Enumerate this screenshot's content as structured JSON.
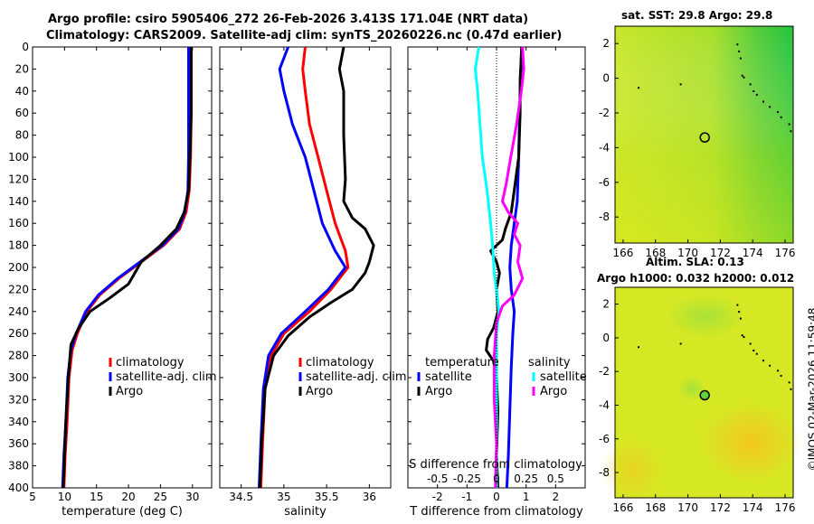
{
  "title": {
    "line1": "Argo profile: csiro 5905406_272 26-Feb-2026 3.413S 171.04E (NRT data)",
    "line2": "Climatology: CARS2009. Satellite-adj clim: synTS_20260226.nc (0.47d earlier)"
  },
  "credit": "©IMOS 02-Mar-2026 11:59:48",
  "colors": {
    "climatology": "#ff0000",
    "satellite": "#0000ff",
    "argo": "#000000",
    "t_satellite": "#00ffff",
    "s_satellite": "#ff00ff"
  },
  "chart_data": [
    {
      "id": "temperature",
      "type": "line",
      "xlabel": "temperature (deg C)",
      "ylabel": "",
      "xlim": [
        5,
        33
      ],
      "ylim": [
        400,
        0
      ],
      "xticks": [
        5,
        10,
        15,
        20,
        25,
        30
      ],
      "yticks": [
        0,
        20,
        40,
        60,
        80,
        100,
        120,
        140,
        160,
        180,
        200,
        220,
        240,
        260,
        280,
        300,
        320,
        340,
        360,
        380,
        400
      ],
      "legend": [
        "climatology",
        "satellite-adj. clim",
        "Argo"
      ],
      "series": [
        {
          "name": "climatology",
          "color": "#ff0000",
          "points": [
            [
              29.8,
              0
            ],
            [
              29.8,
              20
            ],
            [
              29.8,
              60
            ],
            [
              29.7,
              100
            ],
            [
              29.5,
              130
            ],
            [
              29.0,
              150
            ],
            [
              28.0,
              165
            ],
            [
              25.5,
              180
            ],
            [
              22,
              195
            ],
            [
              18.5,
              210
            ],
            [
              15.5,
              225
            ],
            [
              13.5,
              240
            ],
            [
              12.0,
              260
            ],
            [
              11.2,
              275
            ],
            [
              10.7,
              300
            ],
            [
              10.4,
              340
            ],
            [
              10.1,
              370
            ],
            [
              9.9,
              400
            ]
          ]
        },
        {
          "name": "satellite-adj. clim",
          "color": "#0000ff",
          "points": [
            [
              29.4,
              0
            ],
            [
              29.4,
              20
            ],
            [
              29.4,
              60
            ],
            [
              29.4,
              100
            ],
            [
              29.3,
              130
            ],
            [
              28.8,
              150
            ],
            [
              27.8,
              165
            ],
            [
              25.3,
              180
            ],
            [
              21.8,
              195
            ],
            [
              18.3,
              210
            ],
            [
              15.3,
              225
            ],
            [
              13.3,
              240
            ],
            [
              11.8,
              260
            ],
            [
              11.0,
              275
            ],
            [
              10.5,
              300
            ],
            [
              10.2,
              340
            ],
            [
              9.9,
              370
            ],
            [
              9.7,
              400
            ]
          ]
        },
        {
          "name": "Argo",
          "color": "#000000",
          "points": [
            [
              29.8,
              0
            ],
            [
              29.8,
              20
            ],
            [
              29.8,
              60
            ],
            [
              29.6,
              100
            ],
            [
              29.4,
              130
            ],
            [
              28.7,
              150
            ],
            [
              27.5,
              165
            ],
            [
              25.0,
              180
            ],
            [
              22.0,
              195
            ],
            [
              21.0,
              205
            ],
            [
              20.0,
              215
            ],
            [
              17.0,
              228
            ],
            [
              14.0,
              240
            ],
            [
              12.2,
              255
            ],
            [
              11.0,
              270
            ],
            [
              10.6,
              300
            ],
            [
              10.2,
              340
            ],
            [
              10.0,
              370
            ],
            [
              9.8,
              400
            ]
          ]
        }
      ]
    },
    {
      "id": "salinity",
      "type": "line",
      "xlabel": "salinity",
      "ylabel": "",
      "xlim": [
        34.25,
        36.25
      ],
      "ylim": [
        400,
        0
      ],
      "xticks": [
        34.5,
        35,
        35.5,
        36
      ],
      "legend": [
        "climatology",
        "satellite-adj. clim",
        "Argo"
      ],
      "series": [
        {
          "name": "climatology",
          "color": "#ff0000",
          "points": [
            [
              35.25,
              0
            ],
            [
              35.22,
              20
            ],
            [
              35.25,
              40
            ],
            [
              35.3,
              70
            ],
            [
              35.4,
              100
            ],
            [
              35.5,
              130
            ],
            [
              35.6,
              160
            ],
            [
              35.72,
              185
            ],
            [
              35.75,
              200
            ],
            [
              35.55,
              220
            ],
            [
              35.3,
              240
            ],
            [
              35.0,
              260
            ],
            [
              34.85,
              280
            ],
            [
              34.78,
              310
            ],
            [
              34.75,
              360
            ],
            [
              34.73,
              400
            ]
          ]
        },
        {
          "name": "satellite-adj. clim",
          "color": "#0000ff",
          "points": [
            [
              35.05,
              0
            ],
            [
              34.95,
              20
            ],
            [
              35.0,
              40
            ],
            [
              35.1,
              70
            ],
            [
              35.25,
              100
            ],
            [
              35.35,
              130
            ],
            [
              35.45,
              160
            ],
            [
              35.6,
              185
            ],
            [
              35.72,
              200
            ],
            [
              35.52,
              220
            ],
            [
              35.25,
              240
            ],
            [
              34.97,
              260
            ],
            [
              34.82,
              280
            ],
            [
              34.76,
              310
            ],
            [
              34.73,
              360
            ],
            [
              34.71,
              400
            ]
          ]
        },
        {
          "name": "Argo",
          "color": "#000000",
          "points": [
            [
              35.7,
              0
            ],
            [
              35.65,
              20
            ],
            [
              35.7,
              40
            ],
            [
              35.7,
              80
            ],
            [
              35.72,
              120
            ],
            [
              35.7,
              140
            ],
            [
              35.8,
              155
            ],
            [
              35.95,
              165
            ],
            [
              36.05,
              180
            ],
            [
              36.0,
              195
            ],
            [
              35.95,
              205
            ],
            [
              35.8,
              220
            ],
            [
              35.55,
              232
            ],
            [
              35.3,
              245
            ],
            [
              35.05,
              262
            ],
            [
              34.88,
              280
            ],
            [
              34.78,
              310
            ],
            [
              34.74,
              360
            ],
            [
              34.72,
              400
            ]
          ]
        }
      ]
    },
    {
      "id": "difference",
      "type": "line",
      "xlabel": "T difference from climatology",
      "xlabel2": "S difference from climatology",
      "xlim": [
        -3,
        3
      ],
      "xlim2": [
        -0.75,
        0.75
      ],
      "ylim": [
        400,
        0
      ],
      "xticks": [
        -2,
        -1,
        0,
        1,
        2
      ],
      "xticks2": [
        -0.5,
        -0.25,
        0,
        0.25,
        0.5
      ],
      "xticklabels2": [
        "-0.5",
        "-0.25",
        "0",
        "0.25",
        "0.5"
      ],
      "legend_temperature_title": "temperature",
      "legend_salinity_title": "salinity",
      "legend": [
        "satellite",
        "Argo",
        "satellite",
        "Argo"
      ],
      "series": [
        {
          "name": "T satellite",
          "color": "#0000ff",
          "axis": "T",
          "points": [
            [
              0.85,
              0
            ],
            [
              0.8,
              40
            ],
            [
              0.75,
              100
            ],
            [
              0.7,
              140
            ],
            [
              0.6,
              160
            ],
            [
              0.5,
              180
            ],
            [
              0.45,
              200
            ],
            [
              0.5,
              220
            ],
            [
              0.6,
              240
            ],
            [
              0.55,
              260
            ],
            [
              0.5,
              290
            ],
            [
              0.45,
              330
            ],
            [
              0.4,
              370
            ],
            [
              0.35,
              400
            ]
          ]
        },
        {
          "name": "T Argo",
          "color": "#000000",
          "axis": "T",
          "points": [
            [
              0.85,
              0
            ],
            [
              0.8,
              30
            ],
            [
              0.8,
              60
            ],
            [
              0.75,
              100
            ],
            [
              0.6,
              130
            ],
            [
              0.5,
              150
            ],
            [
              0.3,
              165
            ],
            [
              0.2,
              175
            ],
            [
              -0.2,
              185
            ],
            [
              0.0,
              195
            ],
            [
              0.1,
              205
            ],
            [
              0.0,
              220
            ],
            [
              0.05,
              240
            ],
            [
              -0.1,
              255
            ],
            [
              -0.3,
              265
            ],
            [
              -0.35,
              275
            ],
            [
              -0.1,
              285
            ],
            [
              0.0,
              300
            ],
            [
              0.05,
              330
            ],
            [
              0.0,
              370
            ],
            [
              0.05,
              400
            ]
          ]
        },
        {
          "name": "S satellite",
          "color": "#00ffff",
          "axis": "S",
          "points": [
            [
              -0.15,
              0
            ],
            [
              -0.18,
              20
            ],
            [
              -0.16,
              40
            ],
            [
              -0.14,
              70
            ],
            [
              -0.12,
              100
            ],
            [
              -0.08,
              130
            ],
            [
              -0.05,
              160
            ],
            [
              -0.03,
              185
            ],
            [
              -0.02,
              205
            ],
            [
              0.0,
              220
            ],
            [
              0.02,
              240
            ],
            [
              0.0,
              260
            ],
            [
              0.0,
              290
            ],
            [
              0.0,
              330
            ],
            [
              0.0,
              370
            ],
            [
              0.0,
              400
            ]
          ]
        },
        {
          "name": "S Argo",
          "color": "#ff00ff",
          "axis": "S",
          "points": [
            [
              0.22,
              0
            ],
            [
              0.23,
              20
            ],
            [
              0.21,
              40
            ],
            [
              0.17,
              70
            ],
            [
              0.12,
              100
            ],
            [
              0.08,
              125
            ],
            [
              0.05,
              140
            ],
            [
              0.1,
              150
            ],
            [
              0.18,
              160
            ],
            [
              0.15,
              170
            ],
            [
              0.2,
              180
            ],
            [
              0.18,
              195
            ],
            [
              0.22,
              210
            ],
            [
              0.15,
              225
            ],
            [
              0.05,
              235
            ],
            [
              0.0,
              250
            ],
            [
              -0.02,
              280
            ],
            [
              -0.02,
              320
            ],
            [
              0.0,
              360
            ],
            [
              -0.01,
              400
            ]
          ]
        }
      ]
    },
    {
      "id": "sst-map",
      "type": "heatmap",
      "title": "sat. SST: 29.8 Argo: 29.8",
      "xlim": [
        165.5,
        176.5
      ],
      "ylim": [
        -9.5,
        3
      ],
      "xticks": [
        166,
        168,
        170,
        172,
        174,
        176
      ],
      "yticks": [
        2,
        0,
        -2,
        -4,
        -6,
        -8
      ],
      "argo_position": [
        171.04,
        -3.413
      ]
    },
    {
      "id": "sla-map",
      "type": "heatmap",
      "title_line1": "Altim. SLA: 0.13",
      "title_line2": "Argo h1000: 0.032 h2000: 0.012",
      "xlim": [
        165.5,
        176.5
      ],
      "ylim": [
        -9.5,
        3
      ],
      "xticks": [
        166,
        168,
        170,
        172,
        174,
        176
      ],
      "yticks": [
        2,
        0,
        -2,
        -4,
        -6,
        -8
      ],
      "argo_position": [
        171.04,
        -3.413
      ]
    }
  ]
}
